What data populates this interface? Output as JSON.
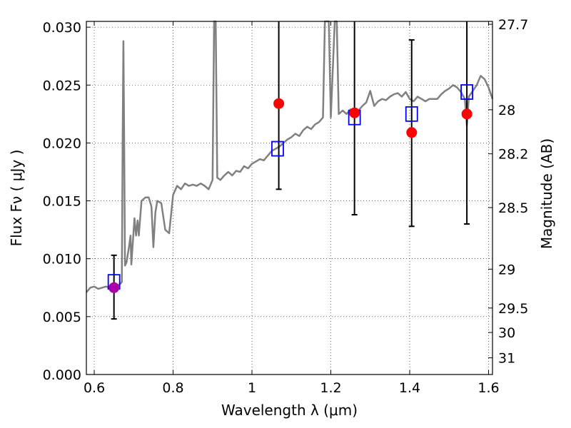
{
  "chart_data": {
    "type": "scatter",
    "xlabel": "Wavelength  λ (μm)",
    "ylabel": "Flux  Fν ( μJy )",
    "y2label": "Magnitude (AB)",
    "xlim": [
      0.58,
      1.61
    ],
    "ylim": [
      0.0,
      0.0305
    ],
    "grid": true,
    "x_ticks": [
      0.6,
      0.8,
      1.0,
      1.2,
      1.4,
      1.6
    ],
    "x_tick_labels": [
      "0.6",
      "0.8",
      "1",
      "1.2",
      "1.4",
      "1.6"
    ],
    "y_ticks": [
      0.0,
      0.005,
      0.01,
      0.015,
      0.02,
      0.025,
      0.03
    ],
    "y_tick_labels": [
      "0.000",
      "0.005",
      "0.010",
      "0.015",
      "0.020",
      "0.025",
      "0.030"
    ],
    "y2_ticks": [
      {
        "label": "27.7",
        "flux": 0.03025
      },
      {
        "label": "28",
        "flux": 0.02287
      },
      {
        "label": "28.2",
        "flux": 0.01906
      },
      {
        "label": "28.5",
        "flux": 0.01442
      },
      {
        "label": "29",
        "flux": 0.0091
      },
      {
        "label": "29.5",
        "flux": 0.00574
      },
      {
        "label": "30",
        "flux": 0.00363
      },
      {
        "label": "31",
        "flux": 0.00144
      }
    ],
    "colors": {
      "spectrum": "#808080",
      "observed": "#ff0000",
      "model": "#0000ff",
      "upper_limit": "#aa00aa",
      "errorbar": "#000000"
    },
    "series": [
      {
        "kind": "spectrum",
        "points": [
          [
            0.58,
            0.0071
          ],
          [
            0.59,
            0.0075
          ],
          [
            0.6,
            0.0076
          ],
          [
            0.61,
            0.0074
          ],
          [
            0.62,
            0.0075
          ],
          [
            0.63,
            0.0076
          ],
          [
            0.64,
            0.0075
          ],
          [
            0.65,
            0.0076
          ],
          [
            0.66,
            0.0077
          ],
          [
            0.665,
            0.0078
          ],
          [
            0.67,
            0.008
          ],
          [
            0.672,
            0.02
          ],
          [
            0.674,
            0.0288
          ],
          [
            0.676,
            0.02
          ],
          [
            0.678,
            0.0094
          ],
          [
            0.682,
            0.0097
          ],
          [
            0.688,
            0.011
          ],
          [
            0.692,
            0.012
          ],
          [
            0.694,
            0.0095
          ],
          [
            0.698,
            0.0115
          ],
          [
            0.702,
            0.0135
          ],
          [
            0.706,
            0.012
          ],
          [
            0.71,
            0.0133
          ],
          [
            0.713,
            0.012
          ],
          [
            0.716,
            0.0133
          ],
          [
            0.72,
            0.015
          ],
          [
            0.73,
            0.0153
          ],
          [
            0.738,
            0.0153
          ],
          [
            0.745,
            0.0145
          ],
          [
            0.75,
            0.011
          ],
          [
            0.755,
            0.014
          ],
          [
            0.76,
            0.015
          ],
          [
            0.77,
            0.0148
          ],
          [
            0.78,
            0.0125
          ],
          [
            0.79,
            0.0122
          ],
          [
            0.8,
            0.0155
          ],
          [
            0.81,
            0.0163
          ],
          [
            0.82,
            0.016
          ],
          [
            0.83,
            0.0165
          ],
          [
            0.84,
            0.0163
          ],
          [
            0.85,
            0.0164
          ],
          [
            0.86,
            0.0163
          ],
          [
            0.87,
            0.0165
          ],
          [
            0.88,
            0.0163
          ],
          [
            0.89,
            0.016
          ],
          [
            0.9,
            0.0168
          ],
          [
            0.904,
            0.0305
          ],
          [
            0.908,
            0.0305
          ],
          [
            0.912,
            0.017
          ],
          [
            0.92,
            0.0168
          ],
          [
            0.93,
            0.0172
          ],
          [
            0.94,
            0.0175
          ],
          [
            0.95,
            0.0172
          ],
          [
            0.96,
            0.0176
          ],
          [
            0.97,
            0.0175
          ],
          [
            0.98,
            0.018
          ],
          [
            0.99,
            0.0178
          ],
          [
            1.0,
            0.0182
          ],
          [
            1.01,
            0.0184
          ],
          [
            1.02,
            0.0186
          ],
          [
            1.03,
            0.0185
          ],
          [
            1.04,
            0.0189
          ],
          [
            1.05,
            0.0193
          ],
          [
            1.06,
            0.0195
          ],
          [
            1.07,
            0.0197
          ],
          [
            1.08,
            0.02
          ],
          [
            1.09,
            0.0203
          ],
          [
            1.1,
            0.0205
          ],
          [
            1.11,
            0.0208
          ],
          [
            1.12,
            0.0206
          ],
          [
            1.13,
            0.0211
          ],
          [
            1.14,
            0.0214
          ],
          [
            1.15,
            0.0212
          ],
          [
            1.16,
            0.0216
          ],
          [
            1.17,
            0.0218
          ],
          [
            1.18,
            0.0222
          ],
          [
            1.185,
            0.0305
          ],
          [
            1.195,
            0.0305
          ],
          [
            1.2,
            0.0222
          ],
          [
            1.21,
            0.0305
          ],
          [
            1.215,
            0.0305
          ],
          [
            1.22,
            0.0225
          ],
          [
            1.23,
            0.0228
          ],
          [
            1.24,
            0.0225
          ],
          [
            1.25,
            0.0229
          ],
          [
            1.26,
            0.0225
          ],
          [
            1.27,
            0.0228
          ],
          [
            1.28,
            0.0232
          ],
          [
            1.29,
            0.0235
          ],
          [
            1.3,
            0.0245
          ],
          [
            1.31,
            0.0232
          ],
          [
            1.32,
            0.0236
          ],
          [
            1.33,
            0.0238
          ],
          [
            1.34,
            0.0237
          ],
          [
            1.35,
            0.024
          ],
          [
            1.36,
            0.0242
          ],
          [
            1.37,
            0.0243
          ],
          [
            1.38,
            0.024
          ],
          [
            1.39,
            0.0244
          ],
          [
            1.4,
            0.0238
          ],
          [
            1.41,
            0.0236
          ],
          [
            1.42,
            0.024
          ],
          [
            1.43,
            0.0238
          ],
          [
            1.44,
            0.0236
          ],
          [
            1.45,
            0.0238
          ],
          [
            1.46,
            0.0238
          ],
          [
            1.47,
            0.0238
          ],
          [
            1.48,
            0.0242
          ],
          [
            1.49,
            0.0245
          ],
          [
            1.5,
            0.0247
          ],
          [
            1.51,
            0.025
          ],
          [
            1.52,
            0.0248
          ],
          [
            1.53,
            0.0244
          ],
          [
            1.54,
            0.0238
          ],
          [
            1.545,
            0.0215
          ],
          [
            1.55,
            0.024
          ],
          [
            1.56,
            0.0245
          ],
          [
            1.57,
            0.025
          ],
          [
            1.58,
            0.0258
          ],
          [
            1.59,
            0.0255
          ],
          [
            1.6,
            0.0248
          ],
          [
            1.61,
            0.0238
          ]
        ]
      },
      {
        "kind": "observed",
        "marker": "circle",
        "points": [
          {
            "x": 0.65,
            "y": 0.0075,
            "err_lo": 0.0048,
            "err_hi": 0.0103,
            "upper_limit": true
          },
          {
            "x": 1.068,
            "y": 0.0234,
            "err_lo": 0.016,
            "err_hi": 0.0305
          },
          {
            "x": 1.26,
            "y": 0.0226,
            "err_lo": 0.0138,
            "err_hi": 0.0305
          },
          {
            "x": 1.405,
            "y": 0.0209,
            "err_lo": 0.0128,
            "err_hi": 0.0289
          },
          {
            "x": 1.545,
            "y": 0.0225,
            "err_lo": 0.013,
            "err_hi": 0.0305
          }
        ]
      },
      {
        "kind": "model",
        "marker": "square",
        "points": [
          {
            "x": 0.65,
            "y": 0.008
          },
          {
            "x": 1.065,
            "y": 0.0195
          },
          {
            "x": 1.26,
            "y": 0.0222
          },
          {
            "x": 1.405,
            "y": 0.0225
          },
          {
            "x": 1.545,
            "y": 0.0244
          }
        ]
      }
    ]
  }
}
